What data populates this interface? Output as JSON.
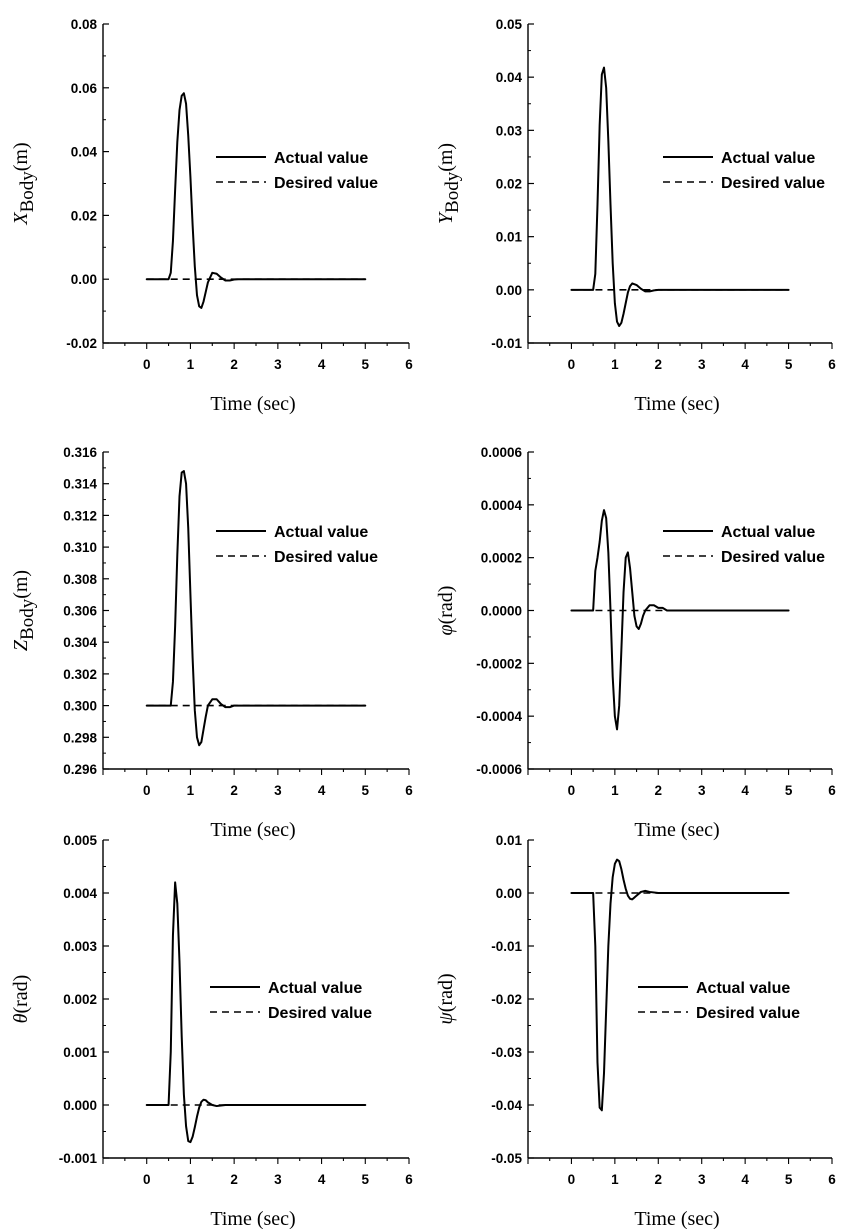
{
  "chart_data": [
    {
      "type": "line",
      "ylabel": {
        "symbol": "X",
        "subscript": "Body",
        "unit": "(m)"
      },
      "xlabel": "Time (sec)",
      "xlim": [
        -1,
        6
      ],
      "xticks": [
        "0",
        "1",
        "2",
        "3",
        "4",
        "5",
        "6"
      ],
      "ylim": [
        -0.02,
        0.08
      ],
      "yticks": [
        "-0.02",
        "0.00",
        "0.02",
        "0.04",
        "0.06",
        "0.08"
      ],
      "legend": {
        "position": "center-right",
        "entries": [
          "Actual value",
          "Desired value"
        ]
      },
      "series": [
        {
          "name": "Actual value",
          "style": "solid",
          "x": [
            0,
            0.5,
            0.55,
            0.6,
            0.65,
            0.7,
            0.75,
            0.8,
            0.85,
            0.9,
            0.95,
            1.0,
            1.05,
            1.1,
            1.15,
            1.2,
            1.25,
            1.3,
            1.35,
            1.4,
            1.5,
            1.6,
            1.7,
            1.8,
            1.9,
            2.0,
            2.1,
            2.2,
            2.5,
            5
          ],
          "y": [
            0,
            0,
            0.002,
            0.012,
            0.028,
            0.043,
            0.053,
            0.0575,
            0.0583,
            0.055,
            0.045,
            0.032,
            0.017,
            0.004,
            -0.005,
            -0.0085,
            -0.009,
            -0.007,
            -0.004,
            -0.001,
            0.002,
            0.0017,
            0.0005,
            -0.0004,
            -0.0004,
            -0.0001,
            0,
            0,
            0,
            0
          ]
        },
        {
          "name": "Desired value",
          "style": "dashed",
          "x": [
            0,
            5
          ],
          "y": [
            0,
            0
          ]
        }
      ]
    },
    {
      "type": "line",
      "ylabel": {
        "symbol": "Y",
        "subscript": "Body",
        "unit": "(m)"
      },
      "xlabel": "Time (sec)",
      "xlim": [
        -1,
        6
      ],
      "xticks": [
        "0",
        "1",
        "2",
        "3",
        "4",
        "5",
        "6"
      ],
      "ylim": [
        -0.01,
        0.05
      ],
      "yticks": [
        "-0.01",
        "0.00",
        "0.01",
        "0.02",
        "0.03",
        "0.04",
        "0.05"
      ],
      "legend": {
        "position": "center-right",
        "entries": [
          "Actual value",
          "Desired value"
        ]
      },
      "series": [
        {
          "name": "Actual value",
          "style": "solid",
          "x": [
            0,
            0.5,
            0.55,
            0.6,
            0.65,
            0.7,
            0.75,
            0.8,
            0.85,
            0.9,
            0.95,
            1.0,
            1.05,
            1.1,
            1.15,
            1.2,
            1.25,
            1.3,
            1.35,
            1.4,
            1.5,
            1.6,
            1.7,
            1.8,
            1.9,
            2.0,
            2.2,
            5
          ],
          "y": [
            0,
            0,
            0.003,
            0.016,
            0.031,
            0.0405,
            0.0418,
            0.038,
            0.028,
            0.016,
            0.005,
            -0.0025,
            -0.006,
            -0.0068,
            -0.0062,
            -0.0045,
            -0.0025,
            -0.0005,
            0.0007,
            0.0012,
            0.0009,
            0.0002,
            -0.0003,
            -0.0003,
            -0.0001,
            0,
            0,
            0
          ]
        },
        {
          "name": "Desired value",
          "style": "dashed",
          "x": [
            0,
            5
          ],
          "y": [
            0,
            0
          ]
        }
      ]
    },
    {
      "type": "line",
      "ylabel": {
        "symbol": "Z",
        "subscript": "Body",
        "unit": "(m)"
      },
      "xlabel": "Time (sec)",
      "xlim": [
        -1,
        6
      ],
      "xticks": [
        "0",
        "1",
        "2",
        "3",
        "4",
        "5",
        "6"
      ],
      "ylim": [
        0.296,
        0.316
      ],
      "yticks": [
        "0.296",
        "0.298",
        "0.300",
        "0.302",
        "0.304",
        "0.306",
        "0.308",
        "0.310",
        "0.312",
        "0.314",
        "0.316"
      ],
      "legend": {
        "position": "center-right",
        "entries": [
          "Actual value",
          "Desired value"
        ]
      },
      "series": [
        {
          "name": "Actual value",
          "style": "solid",
          "x": [
            0,
            0.55,
            0.6,
            0.65,
            0.7,
            0.75,
            0.8,
            0.85,
            0.9,
            0.95,
            1.0,
            1.05,
            1.1,
            1.15,
            1.2,
            1.25,
            1.3,
            1.35,
            1.4,
            1.5,
            1.6,
            1.7,
            1.8,
            1.9,
            2.0,
            2.1,
            2.3,
            5
          ],
          "y": [
            0.3,
            0.3,
            0.3015,
            0.305,
            0.3095,
            0.3132,
            0.3147,
            0.3148,
            0.314,
            0.3112,
            0.307,
            0.303,
            0.2997,
            0.298,
            0.2975,
            0.2977,
            0.2985,
            0.2993,
            0.3,
            0.3004,
            0.3004,
            0.3001,
            0.2999,
            0.2999,
            0.3,
            0.3,
            0.3,
            0.3
          ]
        },
        {
          "name": "Desired value",
          "style": "dashed",
          "x": [
            0,
            5
          ],
          "y": [
            0.3,
            0.3
          ]
        }
      ]
    },
    {
      "type": "line",
      "ylabel": {
        "symbol": "φ",
        "subscript": "",
        "unit": "(rad)"
      },
      "xlabel": "Time (sec)",
      "xlim": [
        -1,
        6
      ],
      "xticks": [
        "0",
        "1",
        "2",
        "3",
        "4",
        "5",
        "6"
      ],
      "ylim": [
        -0.0006,
        0.0006
      ],
      "yticks": [
        "-0.0006",
        "-0.0004",
        "-0.0002",
        "0.0000",
        "0.0002",
        "0.0004",
        "0.0006"
      ],
      "legend": {
        "position": "center-right",
        "entries": [
          "Actual value",
          "Desired value"
        ]
      },
      "series": [
        {
          "name": "Actual value",
          "style": "solid",
          "x": [
            0,
            0.5,
            0.55,
            0.6,
            0.65,
            0.7,
            0.75,
            0.8,
            0.85,
            0.9,
            0.95,
            1.0,
            1.05,
            1.1,
            1.15,
            1.2,
            1.25,
            1.3,
            1.35,
            1.4,
            1.45,
            1.5,
            1.55,
            1.6,
            1.65,
            1.7,
            1.75,
            1.8,
            1.9,
            2.0,
            2.1,
            2.2,
            2.3,
            2.4,
            5
          ],
          "y": [
            0,
            0,
            0.00015,
            0.0002,
            0.00026,
            0.00034,
            0.00038,
            0.00035,
            0.00022,
            0.0,
            -0.00025,
            -0.0004,
            -0.00045,
            -0.00036,
            -0.00015,
            7e-05,
            0.0002,
            0.00022,
            0.00016,
            7e-05,
            -2e-05,
            -6e-05,
            -7e-05,
            -5e-05,
            -2e-05,
            0.0,
            1e-05,
            2e-05,
            2e-05,
            1e-05,
            1e-05,
            0.0,
            0.0,
            0.0,
            0.0
          ]
        },
        {
          "name": "Desired value",
          "style": "dashed",
          "x": [
            0,
            5
          ],
          "y": [
            0,
            0
          ]
        }
      ]
    },
    {
      "type": "line",
      "ylabel": {
        "symbol": "θ",
        "subscript": "",
        "unit": "(rad)"
      },
      "xlabel": "Time (sec)",
      "xlim": [
        -1,
        6
      ],
      "xticks": [
        "0",
        "1",
        "2",
        "3",
        "4",
        "5",
        "6"
      ],
      "ylim": [
        -0.001,
        0.005
      ],
      "yticks": [
        "-0.001",
        "0.000",
        "0.001",
        "0.002",
        "0.003",
        "0.004",
        "0.005"
      ],
      "legend": {
        "position": "center-right",
        "entries": [
          "Actual value",
          "Desired value"
        ]
      },
      "series": [
        {
          "name": "Actual value",
          "style": "solid",
          "x": [
            0,
            0.5,
            0.55,
            0.6,
            0.65,
            0.7,
            0.75,
            0.8,
            0.85,
            0.9,
            0.95,
            1.0,
            1.05,
            1.1,
            1.15,
            1.2,
            1.25,
            1.3,
            1.35,
            1.4,
            1.5,
            1.6,
            1.7,
            1.8,
            2.0,
            5
          ],
          "y": [
            0,
            0,
            0.001,
            0.0032,
            0.0042,
            0.0038,
            0.0027,
            0.0013,
            0.0002,
            -0.0004,
            -0.00068,
            -0.0007,
            -0.0006,
            -0.00042,
            -0.00022,
            -5e-05,
            6e-05,
            0.0001,
            9e-05,
            5e-05,
            0.0,
            -2e-05,
            -1e-05,
            0.0,
            0.0,
            0.0
          ]
        },
        {
          "name": "Desired value",
          "style": "dashed",
          "x": [
            0,
            5
          ],
          "y": [
            0,
            0
          ]
        }
      ]
    },
    {
      "type": "line",
      "ylabel": {
        "symbol": "ψ",
        "subscript": "",
        "unit": "(rad)"
      },
      "xlabel": "Time (sec)",
      "xlim": [
        -1,
        6
      ],
      "xticks": [
        "0",
        "1",
        "2",
        "3",
        "4",
        "5",
        "6"
      ],
      "ylim": [
        -0.05,
        0.01
      ],
      "yticks": [
        "-0.05",
        "-0.04",
        "-0.03",
        "-0.02",
        "-0.01",
        "0.00",
        "0.01"
      ],
      "legend": {
        "position": "center-right",
        "entries": [
          "Actual value",
          "Desired value"
        ]
      },
      "series": [
        {
          "name": "Actual value",
          "style": "solid",
          "x": [
            0,
            0.5,
            0.55,
            0.6,
            0.65,
            0.7,
            0.75,
            0.8,
            0.85,
            0.9,
            0.95,
            1.0,
            1.05,
            1.1,
            1.15,
            1.2,
            1.25,
            1.3,
            1.35,
            1.4,
            1.5,
            1.6,
            1.7,
            1.8,
            2.0,
            5
          ],
          "y": [
            0,
            0,
            -0.01,
            -0.032,
            -0.0405,
            -0.041,
            -0.034,
            -0.022,
            -0.01,
            -0.002,
            0.003,
            0.0055,
            0.0063,
            0.006,
            0.0045,
            0.0025,
            0.0008,
            -0.0005,
            -0.0011,
            -0.0012,
            -0.0005,
            0.0002,
            0.0004,
            0.0002,
            0.0,
            0.0
          ]
        },
        {
          "name": "Desired value",
          "style": "dashed",
          "x": [
            0,
            5
          ],
          "y": [
            0,
            0
          ]
        }
      ]
    }
  ]
}
